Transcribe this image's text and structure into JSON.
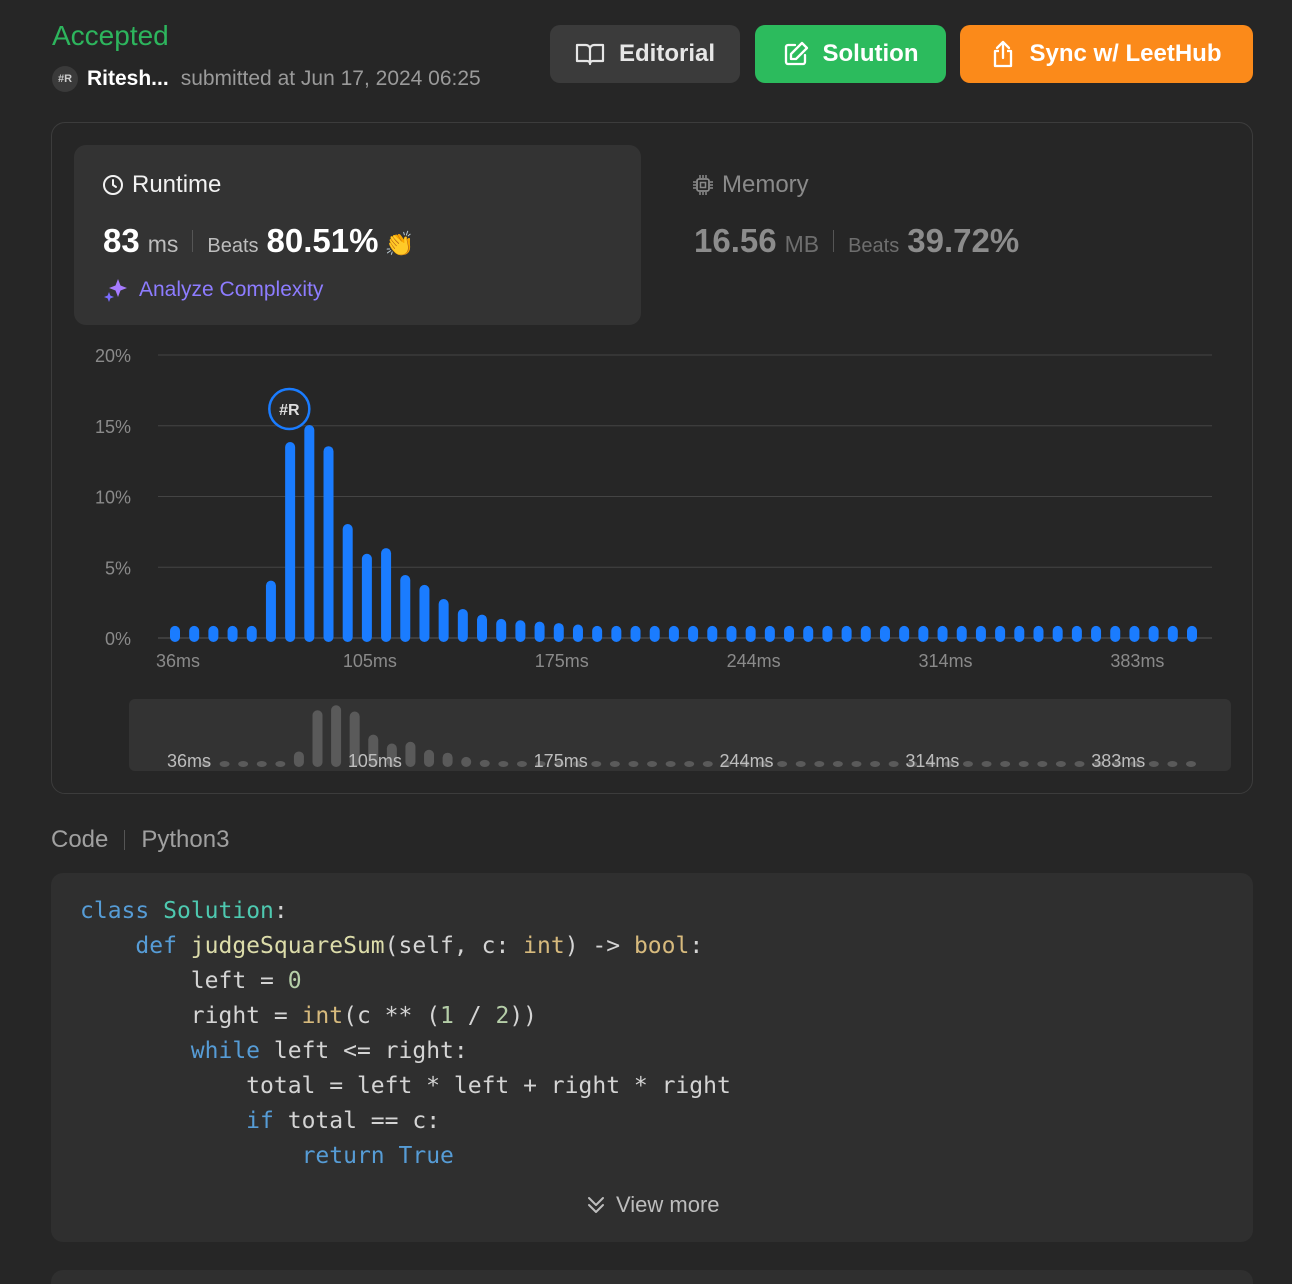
{
  "submission": {
    "status": "Accepted",
    "user": "Ritesh...",
    "avatar_text": "#R",
    "submitted": "submitted at Jun 17, 2024 06:25"
  },
  "actions": {
    "editorial": "Editorial",
    "solution": "Solution",
    "sync": "Sync w/ LeetHub"
  },
  "runtime": {
    "title": "Runtime",
    "value": "83",
    "unit": "ms",
    "beats_label": "Beats",
    "beats": "80.51%",
    "analyze": "Analyze Complexity"
  },
  "memory": {
    "title": "Memory",
    "value": "16.56",
    "unit": "MB",
    "beats_label": "Beats",
    "beats": "39.72%"
  },
  "chart_data": {
    "type": "bar",
    "bar_color": "#1a7cff",
    "highlight_avatar": "#R",
    "highlight_index": 7,
    "y_ticks": [
      "20%",
      "15%",
      "10%",
      "5%",
      "0%"
    ],
    "ylim": [
      0,
      20
    ],
    "x_tick_labels": [
      "36ms",
      "105ms",
      "175ms",
      "244ms",
      "314ms",
      "383ms"
    ],
    "values": [
      0.5,
      0.5,
      0.5,
      0.5,
      0.5,
      3.7,
      13.5,
      14.7,
      13.2,
      7.7,
      5.6,
      6.0,
      4.1,
      3.4,
      2.4,
      1.7,
      1.3,
      1.0,
      0.9,
      0.8,
      0.7,
      0.6,
      0.5,
      0.5,
      0.5,
      0.5,
      0.5,
      0.5,
      0.5,
      0.5,
      0.5,
      0.5,
      0.5,
      0.5,
      0.5,
      0.5,
      0.5,
      0.5,
      0.5,
      0.5,
      0.5,
      0.5,
      0.5,
      0.5,
      0.5,
      0.5,
      0.5,
      0.5,
      0.5,
      0.5,
      0.5,
      0.5,
      0.5,
      0.5
    ],
    "grid": true
  },
  "code": {
    "label": "Code",
    "language": "Python3",
    "lines": [
      [
        [
          "kw",
          "class"
        ],
        [
          "",
          ""
        ],
        [
          "",
          " "
        ],
        [
          "cls",
          "Solution"
        ],
        [
          "",
          ":"
        ]
      ],
      [
        [
          "",
          "    "
        ],
        [
          "kw",
          "def"
        ],
        [
          "",
          " "
        ],
        [
          "fn",
          "judgeSquareSum"
        ],
        [
          "",
          "(self, c: "
        ],
        [
          "ty",
          "int"
        ],
        [
          "",
          ") -> "
        ],
        [
          "ty",
          "bool"
        ],
        [
          "",
          ":"
        ]
      ],
      [
        [
          "",
          "        left = "
        ],
        [
          "num",
          "0"
        ]
      ],
      [
        [
          "",
          "        right = "
        ],
        [
          "ty",
          "int"
        ],
        [
          "",
          "(c ** ("
        ],
        [
          "num",
          "1"
        ],
        [
          "",
          " / "
        ],
        [
          "num",
          "2"
        ],
        [
          "",
          "))"
        ]
      ],
      [
        [
          "",
          "        "
        ],
        [
          "kw",
          "while"
        ],
        [
          "",
          " left <= right:"
        ]
      ],
      [
        [
          "",
          "            total = left * left + right * right"
        ]
      ],
      [
        [
          "",
          "            "
        ],
        [
          "kw",
          "if"
        ],
        [
          "",
          " total == c:"
        ]
      ],
      [
        [
          "",
          "                "
        ],
        [
          "kw",
          "return"
        ],
        [
          "",
          " "
        ],
        [
          "kw",
          "True"
        ]
      ]
    ],
    "view_more": "View more"
  }
}
